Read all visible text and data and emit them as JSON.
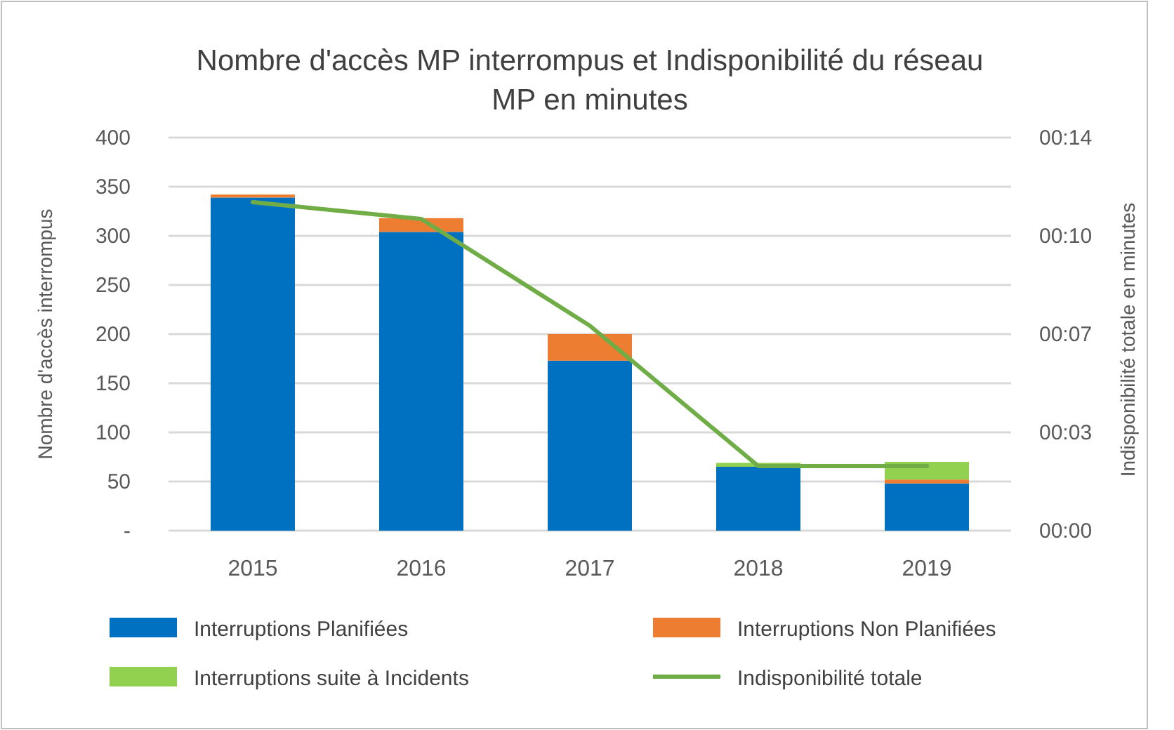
{
  "chart_data": {
    "type": "bar",
    "title": "Nombre d'accès MP interrompus et Indisponibilité du réseau MP en minutes",
    "ylabel": "Nombre d'accès interrompus",
    "y2label": "Indisponibilité totale en minutes",
    "categories": [
      "2015",
      "2016",
      "2017",
      "2018",
      "2019"
    ],
    "stacked": true,
    "series": [
      {
        "name": "Interruptions Planifiées",
        "color": "#0070c0",
        "values": [
          339,
          304,
          173,
          65,
          48
        ]
      },
      {
        "name": "Interruptions Non Planifiées",
        "color": "#ed7d31",
        "values": [
          3,
          14,
          27,
          0,
          4
        ]
      },
      {
        "name": "Interruptions suite à Incidents",
        "color": "#92d050",
        "values": [
          0,
          0,
          0,
          4,
          18
        ]
      },
      {
        "name": "Indisponibilité totale",
        "type": "line",
        "axis": "y2",
        "color": "#70ad47",
        "values": [
          11.7,
          11.1,
          7.3,
          2.3,
          2.3
        ]
      }
    ],
    "ylim": [
      0,
      400
    ],
    "yticks": [
      {
        "value": 0,
        "label": "-"
      },
      50,
      100,
      150,
      200,
      250,
      300,
      350,
      400
    ],
    "y2lim": [
      0,
      14
    ],
    "y2ticks": [
      {
        "value": 0,
        "label": "00:00"
      },
      {
        "value": 3.5,
        "label": "00:03"
      },
      {
        "value": 7,
        "label": "00:07"
      },
      {
        "value": 10.5,
        "label": "00:10"
      },
      {
        "value": 14,
        "label": "00:14"
      }
    ],
    "grid": "y",
    "legend": "bottom",
    "marker": "none",
    "line_style": "solid"
  }
}
